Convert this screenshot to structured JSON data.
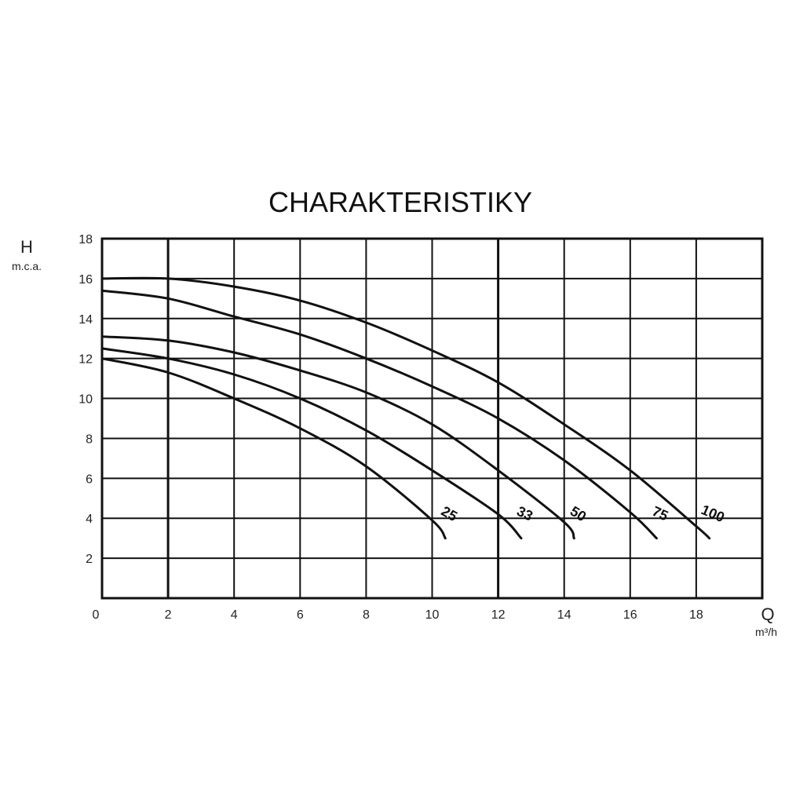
{
  "chart_data": {
    "type": "line",
    "title": "CHARAKTERISTIKY",
    "ylabel": "H",
    "ylabel_unit": "m.c.a.",
    "xlabel": "Q",
    "xlabel_unit": "m³/h",
    "xlim": [
      0,
      20
    ],
    "ylim": [
      0,
      18
    ],
    "x_ticks": [
      0,
      2,
      4,
      6,
      8,
      10,
      12,
      14,
      16,
      18
    ],
    "y_ticks": [
      2,
      4,
      6,
      8,
      10,
      12,
      14,
      16,
      18
    ],
    "heavy_gridlines_x": [
      2,
      12
    ],
    "grid": true,
    "series": [
      {
        "name": "25",
        "points": [
          [
            0,
            12.0
          ],
          [
            2,
            11.3
          ],
          [
            4,
            10.0
          ],
          [
            6,
            8.5
          ],
          [
            8,
            6.6
          ],
          [
            10,
            3.9
          ],
          [
            10.4,
            3.0
          ]
        ]
      },
      {
        "name": "33",
        "points": [
          [
            0,
            12.5
          ],
          [
            2,
            12.0
          ],
          [
            4,
            11.2
          ],
          [
            6,
            10.0
          ],
          [
            8,
            8.4
          ],
          [
            10,
            6.4
          ],
          [
            12,
            4.2
          ],
          [
            12.7,
            3.0
          ]
        ]
      },
      {
        "name": "50",
        "points": [
          [
            0,
            13.1
          ],
          [
            2,
            12.9
          ],
          [
            4,
            12.3
          ],
          [
            6,
            11.4
          ],
          [
            8,
            10.3
          ],
          [
            10,
            8.7
          ],
          [
            12,
            6.4
          ],
          [
            14,
            3.8
          ],
          [
            14.3,
            3.0
          ]
        ]
      },
      {
        "name": "75",
        "points": [
          [
            0,
            15.4
          ],
          [
            2,
            15.0
          ],
          [
            4,
            14.1
          ],
          [
            6,
            13.2
          ],
          [
            8,
            12.0
          ],
          [
            10,
            10.6
          ],
          [
            12,
            9.0
          ],
          [
            14,
            6.9
          ],
          [
            16,
            4.3
          ],
          [
            16.8,
            3.0
          ]
        ]
      },
      {
        "name": "100",
        "points": [
          [
            0,
            16.0
          ],
          [
            2,
            16.0
          ],
          [
            4,
            15.6
          ],
          [
            6,
            14.9
          ],
          [
            8,
            13.8
          ],
          [
            10,
            12.4
          ],
          [
            12,
            10.8
          ],
          [
            14,
            8.7
          ],
          [
            16,
            6.4
          ],
          [
            18,
            3.6
          ],
          [
            18.4,
            3.0
          ]
        ]
      }
    ]
  }
}
